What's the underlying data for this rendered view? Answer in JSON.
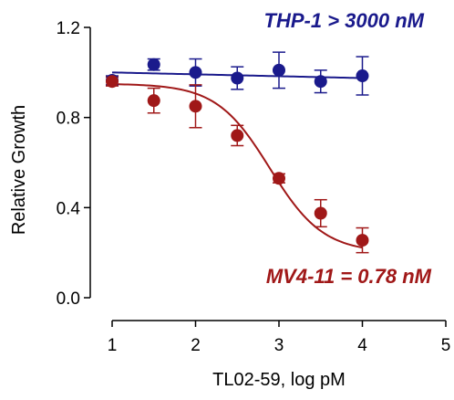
{
  "chart_data": {
    "type": "scatter",
    "xlabel": "TL02-59, log pM",
    "ylabel": "Relative  Growth",
    "xlim": [
      1,
      5
    ],
    "ylim": [
      0.0,
      1.2
    ],
    "x_ticks": [
      "1",
      "2",
      "3",
      "4",
      "5"
    ],
    "y_ticks": [
      "0.0",
      "0.4",
      "0.8",
      "1.2"
    ],
    "grid": false,
    "series": [
      {
        "name": "THP-1 > 3000 nM",
        "color": "#1a1a8c",
        "x": [
          1.0,
          1.5,
          2.0,
          2.5,
          3.0,
          3.5,
          4.0
        ],
        "y": [
          0.965,
          1.035,
          1.0,
          0.975,
          1.01,
          0.96,
          0.985
        ],
        "err": [
          0.02,
          0.025,
          0.06,
          0.05,
          0.08,
          0.05,
          0.085
        ],
        "fit": {
          "model": "linear",
          "y_start": 1.0,
          "y_end": 0.975
        }
      },
      {
        "name": "MV4-11 = 0.78 nM",
        "color": "#a01818",
        "x": [
          1.0,
          1.5,
          2.0,
          2.5,
          3.0,
          3.5,
          4.0
        ],
        "y": [
          0.96,
          0.875,
          0.85,
          0.72,
          0.53,
          0.375,
          0.255
        ],
        "err": [
          0.02,
          0.055,
          0.095,
          0.045,
          0.02,
          0.06,
          0.055
        ],
        "fit": {
          "model": "sigmoid",
          "top": 0.95,
          "bottom": 0.2,
          "logIC50": 2.89,
          "hill": 0.85
        }
      }
    ],
    "annotations": [
      {
        "text": "THP-1 > 3000 nM",
        "color": "#1a1a8c",
        "position": "top-right"
      },
      {
        "text": "MV4-11 = 0.78 nM",
        "color": "#a01818",
        "position": "bottom-right"
      }
    ]
  }
}
